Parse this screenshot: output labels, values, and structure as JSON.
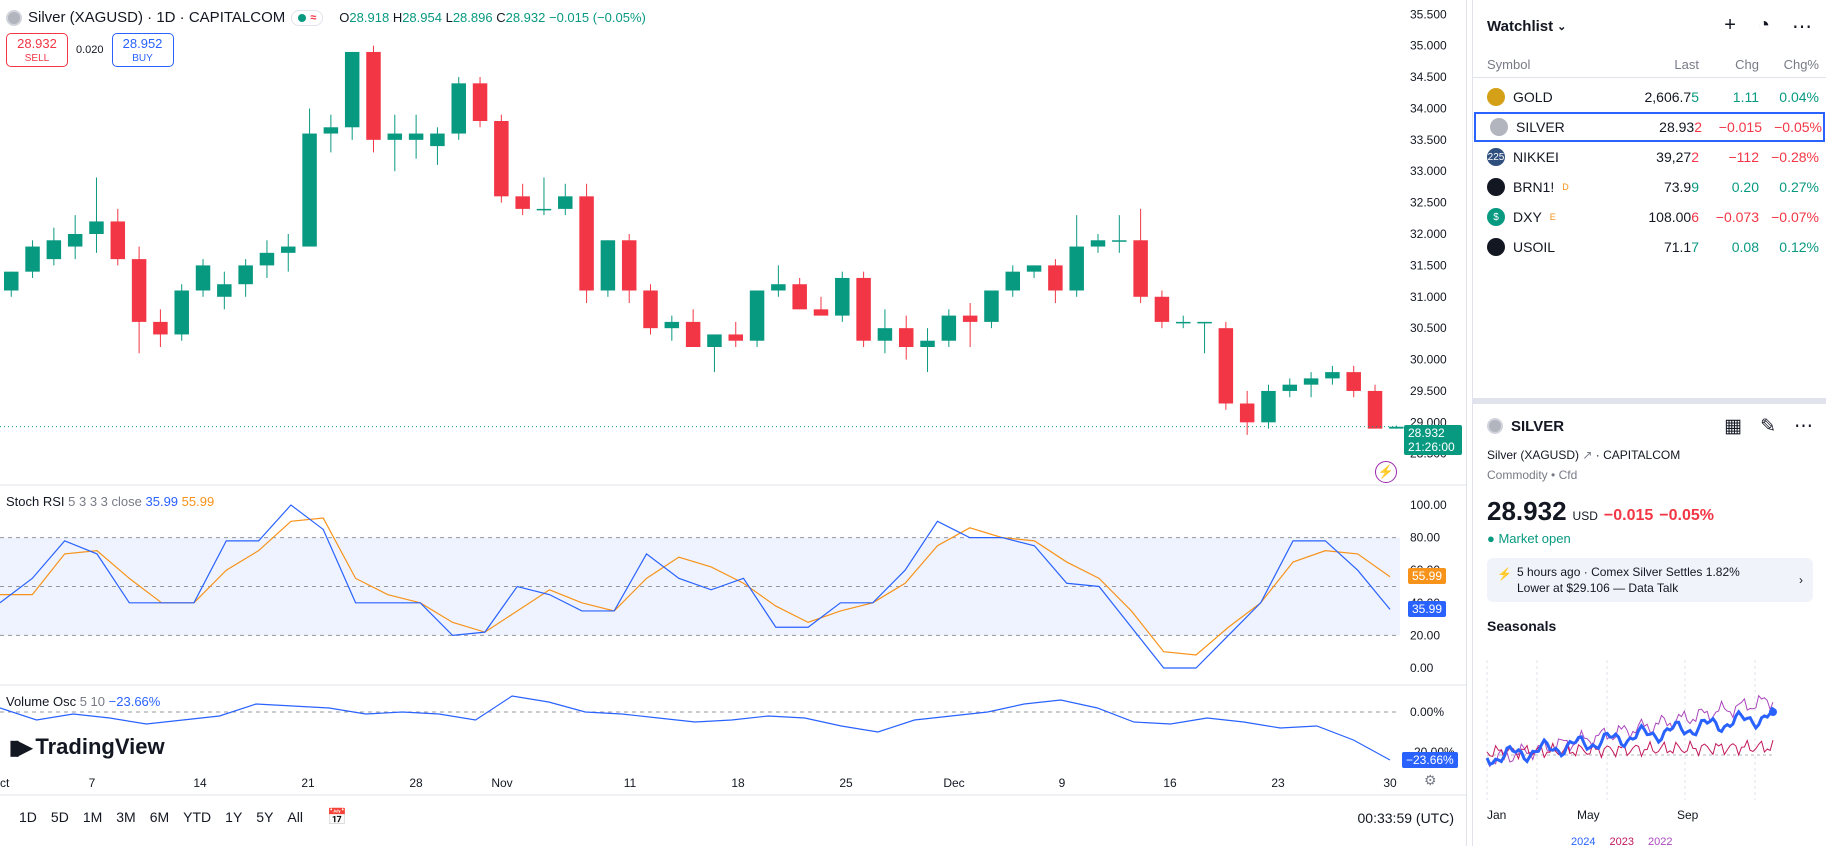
{
  "header": {
    "symbol": "Silver (XAGUSD) · 1D · CAPITALCOM",
    "o_label": "O",
    "o": "28.918",
    "h_label": "H",
    "h": "28.954",
    "l_label": "L",
    "l": "28.896",
    "c_label": "C",
    "c": "28.932",
    "change": "−0.015 (−0.05%)"
  },
  "trade": {
    "sell_price": "28.932",
    "sell_label": "SELL",
    "spread": "0.020",
    "buy_price": "28.952",
    "buy_label": "BUY"
  },
  "price_axis": {
    "ticks": [
      "35.500",
      "35.000",
      "34.500",
      "34.000",
      "33.500",
      "33.000",
      "32.500",
      "32.000",
      "31.500",
      "31.000",
      "30.500",
      "30.000",
      "29.500",
      "29.000",
      "28.500"
    ],
    "current": "28.932",
    "countdown": "21:26:00"
  },
  "stoch": {
    "name": "Stoch RSI",
    "params": "5 3 3 3 close",
    "k": "35.99",
    "d": "55.99",
    "ticks": [
      "100.00",
      "80.00",
      "60.00",
      "40.00",
      "20.00",
      "0.00"
    ]
  },
  "volosc": {
    "name": "Volume Osc",
    "params": "5 10",
    "value": "−23.66%",
    "ticks": [
      "0.00%",
      "-20.00%"
    ]
  },
  "xaxis": [
    "Oct",
    "7",
    "14",
    "21",
    "28",
    "Nov",
    "11",
    "18",
    "25",
    "Dec",
    "9",
    "16",
    "23",
    "30"
  ],
  "logo": "TradingView",
  "ranges": [
    "1D",
    "5D",
    "1M",
    "3M",
    "6M",
    "YTD",
    "1Y",
    "5Y",
    "All"
  ],
  "clock": "00:33:59 (UTC)",
  "colors": {
    "up": "#089981",
    "down": "#f23645",
    "blue": "#2962ff",
    "orange": "#f7931a"
  },
  "chart_data": {
    "type": "candlestick",
    "ylim": [
      28.4,
      35.6
    ],
    "candles": [
      [
        31.1,
        31.4,
        31.0,
        31.4
      ],
      [
        31.4,
        31.9,
        31.3,
        31.8
      ],
      [
        31.6,
        32.1,
        31.5,
        31.9
      ],
      [
        31.8,
        32.3,
        31.6,
        32.0
      ],
      [
        32.0,
        32.9,
        31.7,
        32.2
      ],
      [
        32.2,
        32.4,
        31.5,
        31.6
      ],
      [
        31.6,
        31.8,
        30.1,
        30.6
      ],
      [
        30.6,
        30.8,
        30.2,
        30.4
      ],
      [
        30.4,
        31.2,
        30.3,
        31.1
      ],
      [
        31.1,
        31.6,
        31.0,
        31.5
      ],
      [
        31.0,
        31.4,
        30.8,
        31.2
      ],
      [
        31.2,
        31.6,
        31.0,
        31.5
      ],
      [
        31.5,
        31.9,
        31.3,
        31.7
      ],
      [
        31.7,
        32.0,
        31.4,
        31.8
      ],
      [
        31.8,
        34.0,
        31.8,
        33.6
      ],
      [
        33.6,
        33.9,
        33.3,
        33.7
      ],
      [
        33.7,
        34.9,
        33.5,
        34.9
      ],
      [
        34.9,
        35.0,
        33.3,
        33.5
      ],
      [
        33.5,
        33.9,
        33.0,
        33.6
      ],
      [
        33.5,
        33.9,
        33.2,
        33.6
      ],
      [
        33.4,
        33.7,
        33.1,
        33.6
      ],
      [
        33.6,
        34.5,
        33.5,
        34.4
      ],
      [
        34.4,
        34.5,
        33.7,
        33.8
      ],
      [
        33.8,
        33.9,
        32.5,
        32.6
      ],
      [
        32.6,
        32.8,
        32.3,
        32.4
      ],
      [
        32.4,
        32.9,
        32.3,
        32.4
      ],
      [
        32.4,
        32.8,
        32.3,
        32.6
      ],
      [
        32.6,
        32.8,
        30.9,
        31.1
      ],
      [
        31.1,
        31.9,
        31.0,
        31.9
      ],
      [
        31.9,
        32.0,
        30.9,
        31.1
      ],
      [
        31.1,
        31.2,
        30.4,
        30.5
      ],
      [
        30.5,
        30.7,
        30.3,
        30.6
      ],
      [
        30.6,
        30.8,
        30.2,
        30.2
      ],
      [
        30.2,
        30.4,
        29.8,
        30.4
      ],
      [
        30.4,
        30.6,
        30.2,
        30.3
      ],
      [
        30.3,
        31.1,
        30.2,
        31.1
      ],
      [
        31.1,
        31.5,
        31.0,
        31.2
      ],
      [
        31.2,
        31.3,
        30.8,
        30.8
      ],
      [
        30.8,
        31.0,
        30.7,
        30.7
      ],
      [
        30.7,
        31.4,
        30.6,
        31.3
      ],
      [
        31.3,
        31.4,
        30.2,
        30.3
      ],
      [
        30.3,
        30.8,
        30.1,
        30.5
      ],
      [
        30.5,
        30.7,
        30.0,
        30.2
      ],
      [
        30.2,
        30.5,
        29.8,
        30.3
      ],
      [
        30.3,
        30.8,
        30.2,
        30.7
      ],
      [
        30.7,
        30.9,
        30.2,
        30.6
      ],
      [
        30.6,
        31.1,
        30.5,
        31.1
      ],
      [
        31.1,
        31.5,
        31.0,
        31.4
      ],
      [
        31.4,
        31.5,
        31.3,
        31.5
      ],
      [
        31.5,
        31.6,
        30.9,
        31.1
      ],
      [
        31.1,
        32.3,
        31.0,
        31.8
      ],
      [
        31.8,
        32.0,
        31.7,
        31.9
      ],
      [
        31.9,
        32.3,
        31.7,
        31.9
      ],
      [
        31.9,
        32.4,
        30.9,
        31.0
      ],
      [
        31.0,
        31.1,
        30.5,
        30.6
      ],
      [
        30.6,
        30.7,
        30.5,
        30.6
      ],
      [
        30.6,
        30.6,
        30.1,
        30.6
      ],
      [
        30.5,
        30.6,
        29.2,
        29.3
      ],
      [
        29.3,
        29.5,
        28.8,
        29.0
      ],
      [
        29.0,
        29.6,
        28.9,
        29.5
      ],
      [
        29.5,
        29.7,
        29.4,
        29.6
      ],
      [
        29.6,
        29.8,
        29.4,
        29.7
      ],
      [
        29.7,
        29.9,
        29.6,
        29.8
      ],
      [
        29.8,
        29.9,
        29.4,
        29.5
      ],
      [
        29.5,
        29.6,
        28.9,
        28.9
      ],
      [
        28.9,
        28.95,
        28.9,
        28.93
      ]
    ],
    "stoch_k": [
      40,
      55,
      78,
      70,
      40,
      40,
      40,
      78,
      78,
      100,
      85,
      40,
      40,
      40,
      20,
      22,
      50,
      45,
      35,
      35,
      70,
      55,
      48,
      55,
      25,
      25,
      40,
      40,
      60,
      90,
      80,
      80,
      75,
      52,
      50,
      25,
      0,
      0,
      20,
      40,
      78,
      78,
      60,
      36
    ],
    "stoch_d": [
      45,
      45,
      70,
      72,
      55,
      40,
      40,
      60,
      72,
      90,
      92,
      55,
      45,
      40,
      28,
      22,
      35,
      48,
      40,
      35,
      55,
      68,
      62,
      52,
      38,
      28,
      35,
      40,
      52,
      75,
      86,
      80,
      78,
      65,
      55,
      35,
      10,
      8,
      25,
      40,
      65,
      72,
      70,
      56
    ],
    "volosc": [
      2,
      -4,
      -1,
      -3,
      -6,
      -4,
      -2,
      4,
      3,
      2,
      -1,
      0,
      -1,
      -4,
      8,
      5,
      0,
      -1,
      -3,
      -5,
      -4,
      -2,
      -3,
      -7,
      -10,
      -4,
      -2,
      0,
      4,
      6,
      2,
      -5,
      -6,
      -3,
      -5,
      -8,
      -7,
      -14,
      -24
    ]
  },
  "watchlist": {
    "title": "Watchlist",
    "col_symbol": "Symbol",
    "col_last": "Last",
    "col_chg": "Chg",
    "col_chgp": "Chg%",
    "rows": [
      {
        "sym": "GOLD",
        "last": "2,606.75",
        "chg": "1.11",
        "chgp": "0.04%",
        "dir": "up",
        "icon": "gold-coin-icon",
        "icolor": "#d4a017",
        "itext": "",
        "sup": ""
      },
      {
        "sym": "SILVER",
        "last": "28.932",
        "chg": "−0.015",
        "chgp": "−0.05%",
        "dir": "dn",
        "icon": "silver-coin-icon",
        "icolor": "#b2b5be",
        "itext": "",
        "sup": ""
      },
      {
        "sym": "NIKKEI",
        "last": "39,272",
        "chg": "−112",
        "chgp": "−0.28%",
        "dir": "dn",
        "icon": "nikkei-icon",
        "icolor": "#2f4f7f",
        "itext": "225",
        "sup": ""
      },
      {
        "sym": "BRN1!",
        "last": "73.99",
        "chg": "0.20",
        "chgp": "0.27%",
        "dir": "up",
        "icon": "oil-drop-icon",
        "icolor": "#131722",
        "itext": "",
        "sup": "D"
      },
      {
        "sym": "DXY",
        "last": "108.006",
        "chg": "−0.073",
        "chgp": "−0.07%",
        "dir": "dn",
        "icon": "dollar-icon",
        "icolor": "#089981",
        "itext": "$",
        "sup": "E"
      },
      {
        "sym": "USOIL",
        "last": "71.17",
        "chg": "0.08",
        "chgp": "0.12%",
        "dir": "up",
        "icon": "oil-drop-icon",
        "icolor": "#131722",
        "itext": "",
        "sup": ""
      }
    ]
  },
  "details": {
    "symbol": "SILVER",
    "full": "Silver (XAGUSD)",
    "exchange": "CAPITALCOM",
    "type": "Commodity",
    "sub": "Cfd",
    "price": "28.932",
    "currency": "USD",
    "chg": "−0.015",
    "chgp": "−0.05%",
    "status": "Market open",
    "news_time": "5 hours ago",
    "news_line1": "Comex Silver Settles 1.82%",
    "news_line2": "Lower at $29.106 — Data Talk",
    "seasonals": "Seasonals",
    "months": [
      "Jan",
      "May",
      "Sep"
    ],
    "legend": [
      "2024",
      "2023",
      "2022"
    ]
  }
}
